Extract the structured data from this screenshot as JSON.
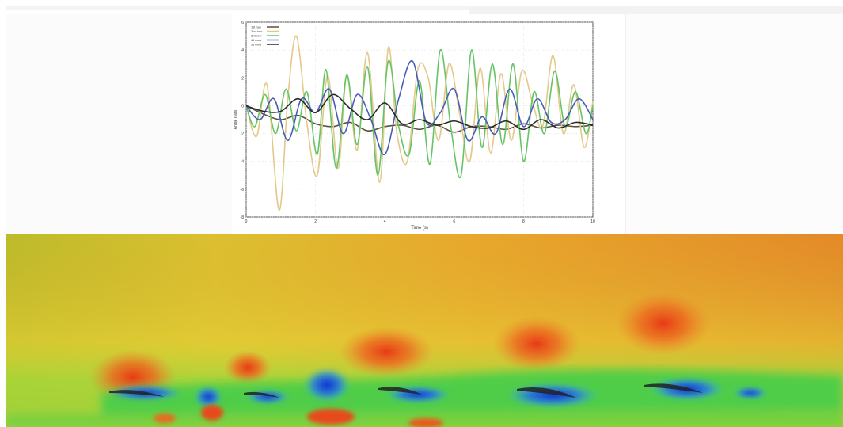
{
  "chart_data": {
    "type": "line",
    "title": "",
    "xlabel": "Time (s)",
    "ylabel": "Angle (rad)",
    "xlim": [
      0,
      10
    ],
    "ylim": [
      -8,
      6
    ],
    "x_ticks": [
      "0",
      "2",
      "4",
      "6",
      "8",
      "10"
    ],
    "y_ticks": [
      "6",
      "4",
      "2",
      "0",
      "-2",
      "-4",
      "-6",
      "-8"
    ],
    "grid": true,
    "legend_position": "top-left",
    "series": [
      {
        "name": "1st row",
        "color": "#5a5040",
        "x": [
          0,
          0.5,
          1,
          1.5,
          2,
          2.5,
          3,
          3.5,
          4,
          4.5,
          5,
          5.5,
          6,
          6.5,
          7,
          7.5,
          8,
          8.5,
          9,
          9.5,
          10
        ],
        "y": [
          0,
          -0.6,
          -1.0,
          -0.7,
          -1.3,
          -1.5,
          -1.2,
          -1.8,
          -1.5,
          -1.4,
          -1.7,
          -1.4,
          -1.9,
          -1.5,
          -1.5,
          -1.7,
          -1.3,
          -1.6,
          -1.4,
          -1.5,
          -1.4
        ]
      },
      {
        "name": "2nd row",
        "color": "#e3c98a",
        "x": [
          0,
          0.3,
          0.6,
          0.95,
          1.2,
          1.45,
          1.75,
          2.05,
          2.35,
          2.65,
          2.9,
          3.2,
          3.5,
          3.85,
          4.1,
          4.35,
          4.65,
          4.95,
          5.25,
          5.55,
          5.85,
          6.15,
          6.45,
          6.75,
          7.05,
          7.35,
          7.65,
          7.95,
          8.25,
          8.55,
          8.85,
          9.15,
          9.45,
          9.75,
          10
        ],
        "y": [
          0,
          -2.2,
          1.5,
          -7.5,
          0.5,
          5.0,
          -1.2,
          -5.0,
          2.2,
          -4.5,
          2.2,
          -3.2,
          3.8,
          -5.5,
          4.2,
          -2.0,
          -4.0,
          2.6,
          2.0,
          -2.5,
          3.0,
          -0.5,
          -4.0,
          2.7,
          -3.4,
          2.3,
          -2.5,
          2.5,
          0.3,
          -1.5,
          3.6,
          -2.0,
          1.5,
          -3.0,
          0.3
        ]
      },
      {
        "name": "3rd row",
        "color": "#66c466",
        "x": [
          0,
          0.25,
          0.55,
          0.85,
          1.15,
          1.45,
          1.75,
          2.05,
          2.3,
          2.6,
          2.9,
          3.2,
          3.5,
          3.8,
          4.1,
          4.4,
          4.7,
          5.0,
          5.3,
          5.6,
          5.9,
          6.2,
          6.5,
          6.8,
          7.1,
          7.4,
          7.7,
          8.0,
          8.3,
          8.6,
          8.9,
          9.2,
          9.5,
          9.8,
          10
        ],
        "y": [
          0,
          -1.5,
          0.8,
          -2.0,
          1.2,
          -1.8,
          1.0,
          -3.5,
          2.6,
          -4.5,
          2.2,
          -2.8,
          2.8,
          -5.0,
          3.2,
          -1.5,
          -3.5,
          1.8,
          -4.2,
          4.0,
          -1.5,
          -5.0,
          4.0,
          -3.0,
          3.0,
          -2.8,
          3.0,
          -4.0,
          1.0,
          -2.0,
          2.5,
          -1.5,
          1.0,
          -2.0,
          0
        ]
      },
      {
        "name": "4th row",
        "color": "#4a5ab8",
        "x": [
          0,
          0.4,
          0.8,
          1.2,
          1.6,
          2.0,
          2.4,
          2.8,
          3.2,
          3.6,
          4.0,
          4.4,
          4.8,
          5.2,
          5.6,
          6.0,
          6.4,
          6.8,
          7.2,
          7.6,
          8.0,
          8.4,
          8.8,
          9.2,
          9.6,
          10
        ],
        "y": [
          0,
          -1.0,
          0.5,
          -2.5,
          0.5,
          -0.5,
          1.2,
          -2.0,
          0.8,
          -1.0,
          -3.5,
          0.5,
          3.2,
          -1.2,
          -0.5,
          1.2,
          -2.5,
          -0.8,
          -2.0,
          1.2,
          -1.5,
          0.5,
          -1.2,
          -1.0,
          0.5,
          -1.0
        ]
      },
      {
        "name": "5th row",
        "color": "#2a2a2a",
        "x": [
          0,
          0.5,
          1.0,
          1.5,
          2.0,
          2.5,
          3.0,
          3.5,
          4.0,
          4.5,
          5.0,
          5.5,
          6.0,
          6.5,
          7.0,
          7.5,
          8.0,
          8.5,
          9.0,
          9.5,
          10
        ],
        "y": [
          0,
          -0.4,
          -0.4,
          0.5,
          -0.5,
          0.8,
          -0.2,
          -1.0,
          0.2,
          -1.3,
          -1.0,
          -1.4,
          -1.1,
          -1.5,
          -1.6,
          -1.1,
          -1.7,
          -1.0,
          -1.6,
          -1.2,
          -1.4
        ]
      }
    ]
  },
  "legend_swatch_colors": [
    "#5a5040",
    "#e3c98a",
    "#66c466",
    "#4a5ab8",
    "#2a2a2a"
  ],
  "cfd_colors": {
    "far_field_left": "#c8b428",
    "far_field_right": "#ec8c2a",
    "high_pressure": "#e8451a",
    "mid_field": "#e8d23a",
    "wake_green": "#3ccc46",
    "vortex_blue": "#1450d8"
  }
}
